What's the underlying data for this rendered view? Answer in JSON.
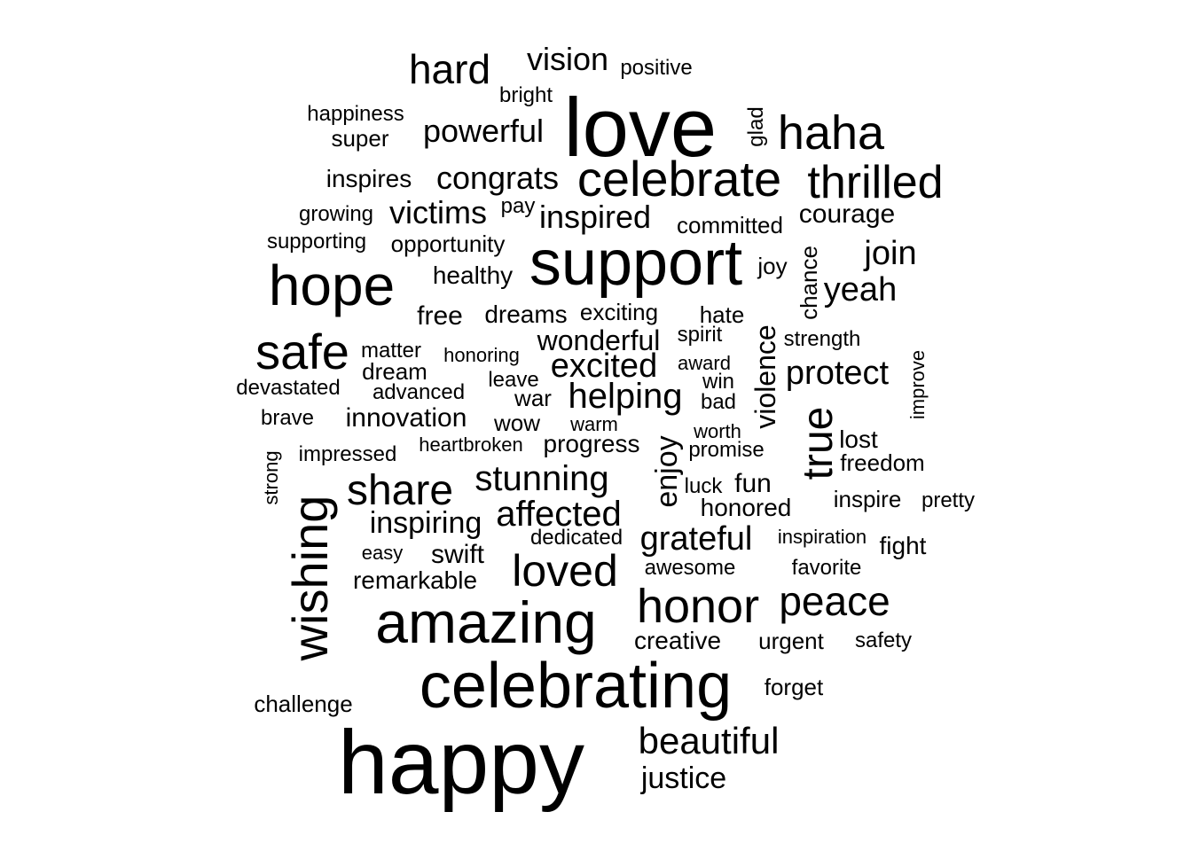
{
  "cloud": {
    "words": [
      {
        "text": "happy"
      },
      {
        "text": "love"
      },
      {
        "text": "support"
      },
      {
        "text": "celebrating"
      },
      {
        "text": "amazing"
      },
      {
        "text": "celebrate"
      },
      {
        "text": "hope"
      },
      {
        "text": "safe"
      },
      {
        "text": "wishing"
      },
      {
        "text": "honor"
      },
      {
        "text": "haha"
      },
      {
        "text": "thrilled"
      },
      {
        "text": "share"
      },
      {
        "text": "loved"
      },
      {
        "text": "peace"
      },
      {
        "text": "hard"
      },
      {
        "text": "beautiful"
      },
      {
        "text": "true"
      },
      {
        "text": "affected"
      },
      {
        "text": "helping"
      },
      {
        "text": "stunning"
      },
      {
        "text": "grateful"
      },
      {
        "text": "excited"
      },
      {
        "text": "protect"
      },
      {
        "text": "powerful"
      },
      {
        "text": "congrats"
      },
      {
        "text": "inspired"
      },
      {
        "text": "victims"
      },
      {
        "text": "yeah"
      },
      {
        "text": "join"
      },
      {
        "text": "vision"
      },
      {
        "text": "wonderful"
      },
      {
        "text": "inspiring"
      },
      {
        "text": "enjoy"
      },
      {
        "text": "violence"
      },
      {
        "text": "justice"
      },
      {
        "text": "innovation"
      },
      {
        "text": "courage"
      },
      {
        "text": "free"
      },
      {
        "text": "swift"
      },
      {
        "text": "dreams"
      },
      {
        "text": "progress"
      },
      {
        "text": "inspires"
      },
      {
        "text": "fun"
      },
      {
        "text": "remarkable"
      },
      {
        "text": "honored"
      },
      {
        "text": "creative"
      },
      {
        "text": "committed"
      },
      {
        "text": "healthy"
      },
      {
        "text": "opportunity"
      },
      {
        "text": "exciting"
      },
      {
        "text": "hate"
      },
      {
        "text": "lost"
      },
      {
        "text": "freedom"
      },
      {
        "text": "super"
      },
      {
        "text": "chance"
      },
      {
        "text": "war"
      },
      {
        "text": "urgent"
      },
      {
        "text": "forget"
      },
      {
        "text": "challenge"
      },
      {
        "text": "inspire"
      },
      {
        "text": "fight"
      },
      {
        "text": "favorite"
      },
      {
        "text": "wow"
      },
      {
        "text": "positive"
      },
      {
        "text": "happiness"
      },
      {
        "text": "supporting"
      },
      {
        "text": "glad"
      },
      {
        "text": "joy"
      },
      {
        "text": "matter"
      },
      {
        "text": "dream"
      },
      {
        "text": "advanced"
      },
      {
        "text": "devastated"
      },
      {
        "text": "spirit"
      },
      {
        "text": "strength"
      },
      {
        "text": "impressed"
      },
      {
        "text": "heartbroken"
      },
      {
        "text": "promise"
      },
      {
        "text": "dedicated"
      },
      {
        "text": "awesome"
      },
      {
        "text": "safety"
      },
      {
        "text": "pretty"
      },
      {
        "text": "bright"
      },
      {
        "text": "growing"
      },
      {
        "text": "pay"
      },
      {
        "text": "honoring"
      },
      {
        "text": "award"
      },
      {
        "text": "leave"
      },
      {
        "text": "win"
      },
      {
        "text": "bad"
      },
      {
        "text": "brave"
      },
      {
        "text": "warm"
      },
      {
        "text": "worth"
      },
      {
        "text": "luck"
      },
      {
        "text": "inspiration"
      },
      {
        "text": "easy"
      },
      {
        "text": "strong"
      },
      {
        "text": "improve"
      }
    ]
  }
}
